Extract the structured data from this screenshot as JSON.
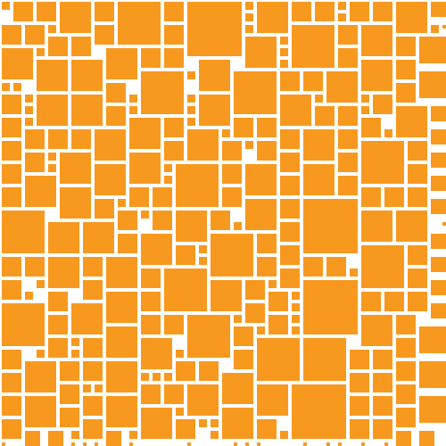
{
  "canvas": {
    "background": "#ffffff"
  },
  "pattern": {
    "name": "square-tile-mosaic",
    "tile_color": "#f7991f",
    "gap_color": "#ffffff",
    "tile_count": 274,
    "text_labels": []
  }
}
